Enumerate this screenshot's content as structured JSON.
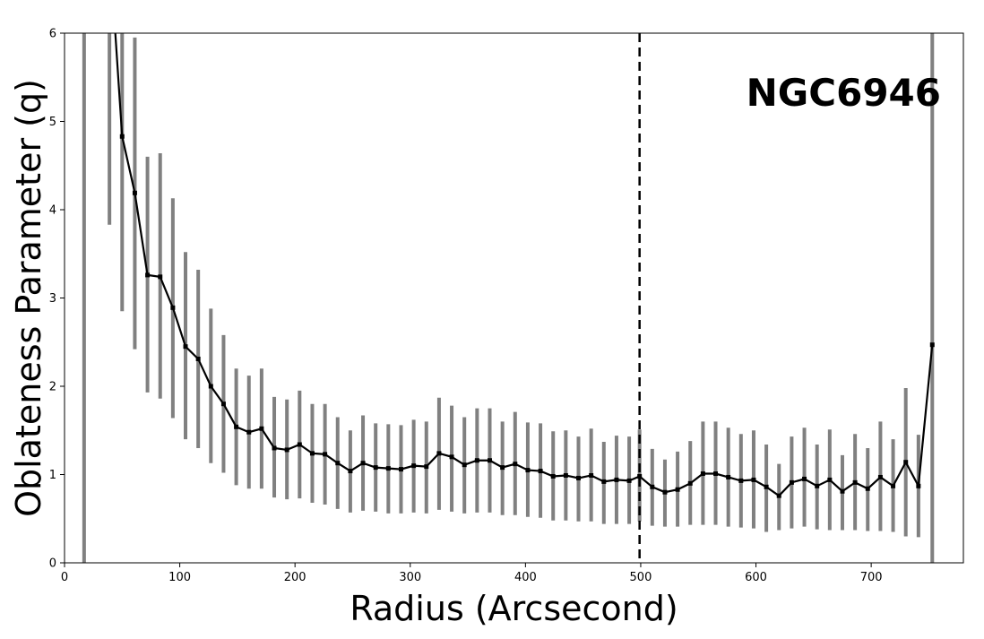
{
  "chart_data": {
    "type": "line",
    "title": "",
    "annotation": "NGC6946",
    "xlabel": "Radius (Arcsecond)",
    "ylabel": "Oblateness Parameter (q)",
    "xlim": [
      0,
      780
    ],
    "ylim": [
      0,
      6
    ],
    "xticks": [
      0,
      100,
      200,
      300,
      400,
      500,
      600,
      700
    ],
    "yticks": [
      0,
      1,
      2,
      3,
      4,
      5,
      6
    ],
    "grid": false,
    "vline_x": 499,
    "colors": {
      "line": "#000000",
      "errorbar": "#808080",
      "vline": "#000000"
    },
    "series": [
      {
        "x": [
          17,
          39,
          50,
          61,
          72,
          83,
          94,
          105,
          116,
          127,
          138,
          149,
          160,
          171,
          182,
          193,
          204,
          215,
          226,
          237,
          248,
          259,
          270,
          281,
          292,
          303,
          314,
          325,
          336,
          347,
          358,
          369,
          380,
          391,
          402,
          413,
          424,
          435,
          446,
          457,
          468,
          479,
          490,
          499,
          510,
          521,
          532,
          543,
          554,
          565,
          576,
          587,
          598,
          609,
          620,
          631,
          642,
          653,
          664,
          675,
          686,
          697,
          708,
          719,
          730,
          741,
          753
        ],
        "y": [
          null,
          7.0,
          4.83,
          4.19,
          3.26,
          3.24,
          2.89,
          2.45,
          2.31,
          2.0,
          1.8,
          1.54,
          1.48,
          1.52,
          1.3,
          1.28,
          1.34,
          1.24,
          1.23,
          1.13,
          1.04,
          1.13,
          1.08,
          1.07,
          1.06,
          1.1,
          1.09,
          1.24,
          1.2,
          1.11,
          1.16,
          1.16,
          1.08,
          1.12,
          1.05,
          1.04,
          0.98,
          0.99,
          0.96,
          0.99,
          0.92,
          0.94,
          0.93,
          0.98,
          0.86,
          0.8,
          0.83,
          0.9,
          1.01,
          1.01,
          0.97,
          0.93,
          0.94,
          0.86,
          0.76,
          0.91,
          0.95,
          0.87,
          0.94,
          0.81,
          0.91,
          0.84,
          0.97,
          0.87,
          1.14,
          0.87,
          2.47
        ],
        "err_low": [
          0,
          3.83,
          2.85,
          2.42,
          1.93,
          1.86,
          1.64,
          1.4,
          1.3,
          1.13,
          1.02,
          0.88,
          0.84,
          0.84,
          0.74,
          0.72,
          0.73,
          0.68,
          0.66,
          0.61,
          0.57,
          0.59,
          0.58,
          0.56,
          0.56,
          0.57,
          0.56,
          0.6,
          0.58,
          0.56,
          0.57,
          0.57,
          0.54,
          0.54,
          0.52,
          0.51,
          0.48,
          0.48,
          0.47,
          0.47,
          0.44,
          0.44,
          0.44,
          0.47,
          0.42,
          0.41,
          0.41,
          0.43,
          0.43,
          0.43,
          0.41,
          0.4,
          0.39,
          0.35,
          0.37,
          0.39,
          0.41,
          0.38,
          0.37,
          0.37,
          0.37,
          0.36,
          0.36,
          0.35,
          0.3,
          0.29,
          0
        ],
        "err_high": [
          6,
          6,
          6,
          5.95,
          4.6,
          4.64,
          4.13,
          3.52,
          3.32,
          2.88,
          2.58,
          2.2,
          2.12,
          2.2,
          1.88,
          1.85,
          1.95,
          1.8,
          1.8,
          1.65,
          1.5,
          1.67,
          1.58,
          1.57,
          1.56,
          1.62,
          1.6,
          1.87,
          1.78,
          1.65,
          1.75,
          1.75,
          1.6,
          1.71,
          1.59,
          1.58,
          1.49,
          1.5,
          1.43,
          1.52,
          1.37,
          1.44,
          1.43,
          1.51,
          1.29,
          1.17,
          1.26,
          1.38,
          1.6,
          1.6,
          1.53,
          1.46,
          1.5,
          1.34,
          1.12,
          1.43,
          1.53,
          1.34,
          1.51,
          1.22,
          1.46,
          1.3,
          1.6,
          1.4,
          1.98,
          1.45,
          6
        ]
      }
    ]
  }
}
